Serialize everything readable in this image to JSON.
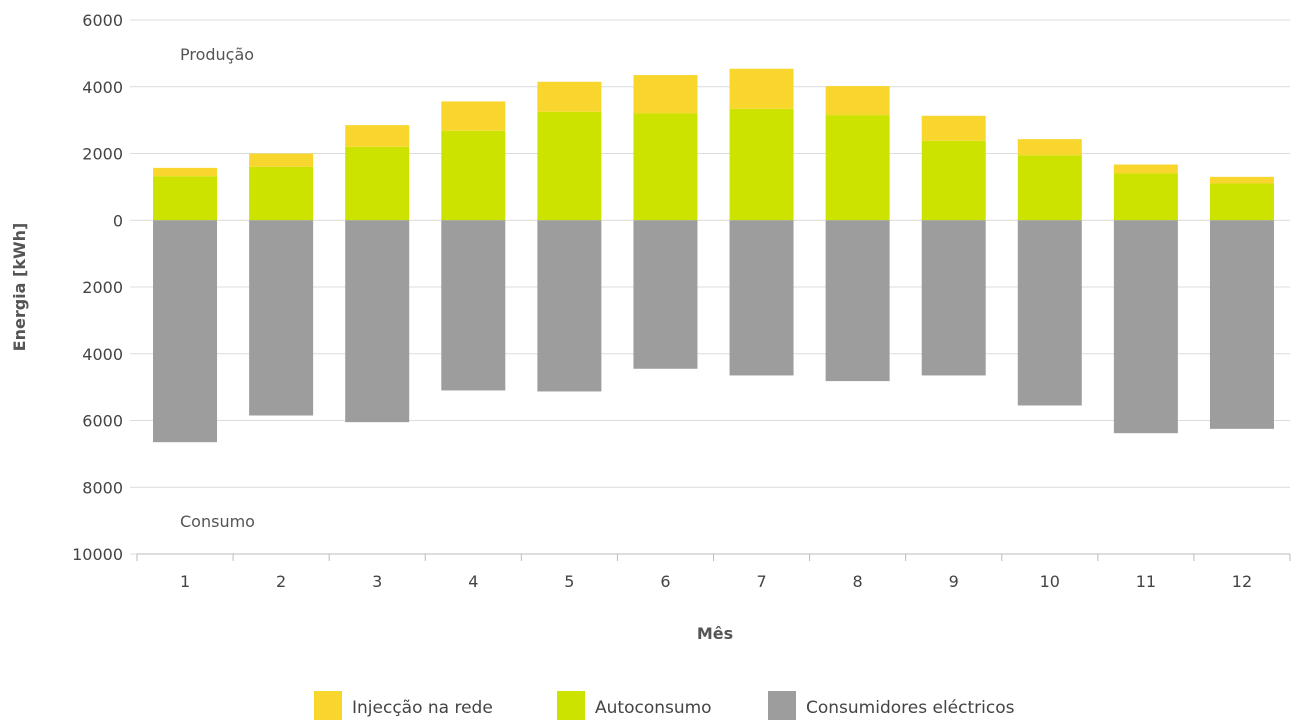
{
  "chart_data": {
    "type": "bar",
    "stacked": true,
    "categories": [
      "1",
      "2",
      "3",
      "4",
      "5",
      "6",
      "7",
      "8",
      "9",
      "10",
      "11",
      "12"
    ],
    "series": [
      {
        "name": "Injecção na rede",
        "color": "#f9d62e",
        "values": [
          250,
          400,
          650,
          880,
          900,
          1150,
          1200,
          870,
          750,
          480,
          270,
          200
        ]
      },
      {
        "name": "Autoconsumo",
        "color": "#cce300",
        "values": [
          1320,
          1600,
          2200,
          2680,
          3250,
          3200,
          3340,
          3150,
          2380,
          1950,
          1400,
          1100
        ]
      },
      {
        "name": "Consumidores eléctricos",
        "color": "#9d9d9d",
        "values": [
          -6650,
          -5850,
          -6050,
          -5100,
          -5130,
          -4450,
          -4650,
          -4820,
          -4650,
          -5550,
          -6380,
          -6250
        ]
      }
    ],
    "yticks": [
      {
        "value": 6000,
        "label": "6000"
      },
      {
        "value": 4000,
        "label": "4000"
      },
      {
        "value": 2000,
        "label": "2000"
      },
      {
        "value": 0,
        "label": "0"
      },
      {
        "value": -2000,
        "label": "2000"
      },
      {
        "value": -4000,
        "label": "4000"
      },
      {
        "value": -6000,
        "label": "6000"
      },
      {
        "value": -8000,
        "label": "8000"
      },
      {
        "value": -10000,
        "label": "10000"
      }
    ],
    "ylim": [
      -10000,
      6000
    ],
    "xlabel": "Mês",
    "ylabel": "Energia [kWh]",
    "annotations": {
      "top": "Produção",
      "bottom": "Consumo"
    },
    "grid": true,
    "legend_position": "bottom-center"
  }
}
